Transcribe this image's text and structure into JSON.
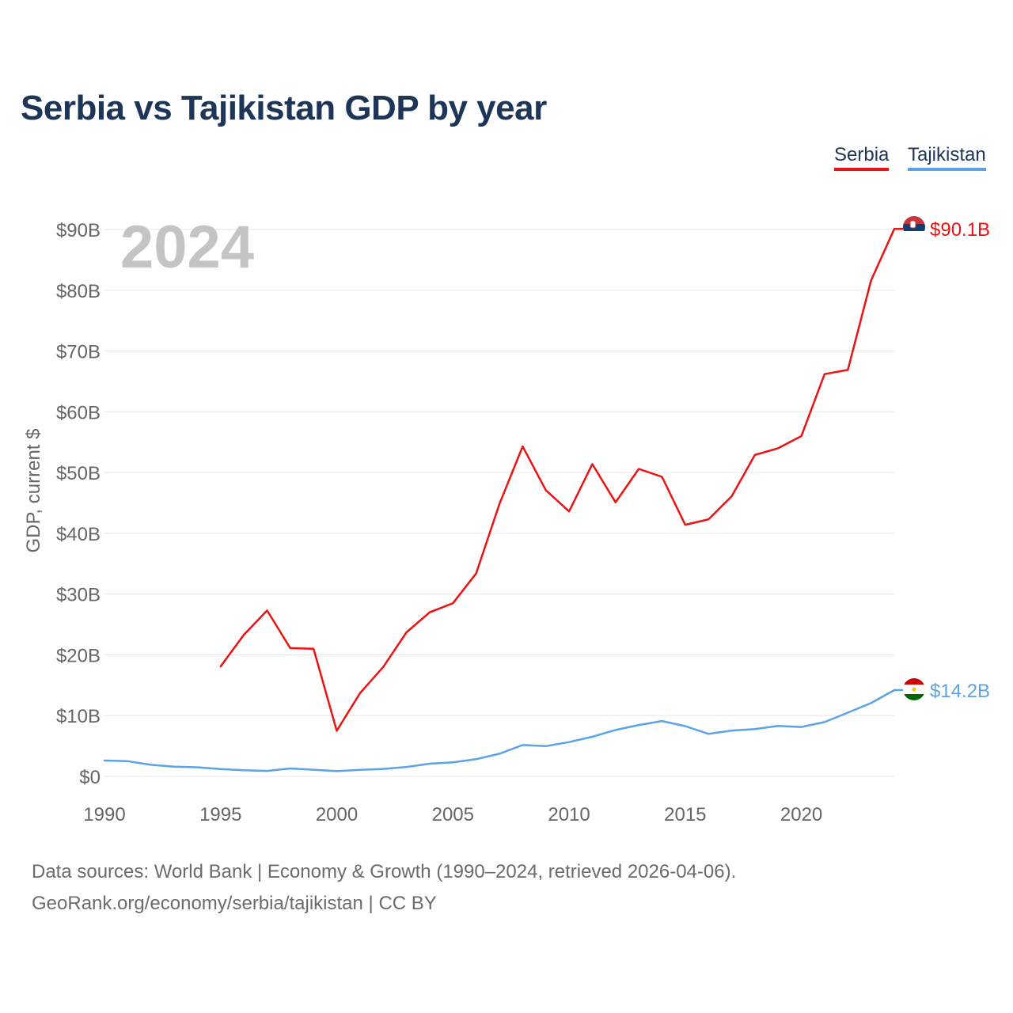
{
  "title": "Serbia vs Tajikistan GDP by year",
  "legend": [
    {
      "name": "Serbia",
      "color": "#ee1111"
    },
    {
      "name": "Tajikistan",
      "color": "#5ba3e6"
    }
  ],
  "year_watermark": "2024",
  "source_line1": "Data sources: World Bank | Economy & Growth (1990–2024, retrieved 2026-04-06).",
  "source_line2": "GeoRank.org/economy/serbia/tajikistan | CC BY",
  "chart_data": {
    "type": "line",
    "title": "Serbia vs Tajikistan GDP by year",
    "xlabel": "",
    "ylabel": "GDP, current $",
    "xlim": [
      1990,
      2024
    ],
    "ylim": [
      0,
      90
    ],
    "y_unit": "billion current US$",
    "x_ticks": [
      1990,
      1995,
      2000,
      2005,
      2010,
      2015,
      2020
    ],
    "y_ticks": [
      0,
      10,
      20,
      30,
      40,
      50,
      60,
      70,
      80,
      90
    ],
    "y_tick_labels": [
      "$0",
      "$10B",
      "$20B",
      "$30B",
      "$40B",
      "$50B",
      "$60B",
      "$70B",
      "$80B",
      "$90B"
    ],
    "grid": true,
    "legend_position": "top-right",
    "series": [
      {
        "name": "Serbia",
        "color": "#ee1111",
        "end_label": "$90.1B",
        "x": [
          1995,
          1996,
          1997,
          1998,
          1999,
          2000,
          2001,
          2002,
          2003,
          2004,
          2005,
          2006,
          2007,
          2008,
          2009,
          2010,
          2011,
          2012,
          2013,
          2014,
          2015,
          2016,
          2017,
          2018,
          2019,
          2020,
          2021,
          2022,
          2023,
          2024
        ],
        "values": [
          18.1,
          23.3,
          27.3,
          21.1,
          21.0,
          7.5,
          13.7,
          18.0,
          23.7,
          27.0,
          28.5,
          33.4,
          44.8,
          54.3,
          47.1,
          43.6,
          51.4,
          45.1,
          50.6,
          49.3,
          41.4,
          42.3,
          46.1,
          52.9,
          54.0,
          56.0,
          66.2,
          66.9,
          81.6,
          90.1
        ]
      },
      {
        "name": "Tajikistan",
        "color": "#5ba3e6",
        "end_label": "$14.2B",
        "x": [
          1990,
          1991,
          1992,
          1993,
          1994,
          1995,
          1996,
          1997,
          1998,
          1999,
          2000,
          2001,
          2002,
          2003,
          2004,
          2005,
          2006,
          2007,
          2008,
          2009,
          2010,
          2011,
          2012,
          2013,
          2014,
          2015,
          2016,
          2017,
          2018,
          2019,
          2020,
          2021,
          2022,
          2023,
          2024
        ],
        "values": [
          2.6,
          2.5,
          1.9,
          1.6,
          1.5,
          1.2,
          1.0,
          0.9,
          1.3,
          1.1,
          0.86,
          1.08,
          1.22,
          1.55,
          2.08,
          2.31,
          2.83,
          3.72,
          5.16,
          4.98,
          5.64,
          6.52,
          7.63,
          8.45,
          9.11,
          8.27,
          6.99,
          7.54,
          7.77,
          8.3,
          8.13,
          8.94,
          10.49,
          12.06,
          14.2
        ]
      }
    ]
  }
}
